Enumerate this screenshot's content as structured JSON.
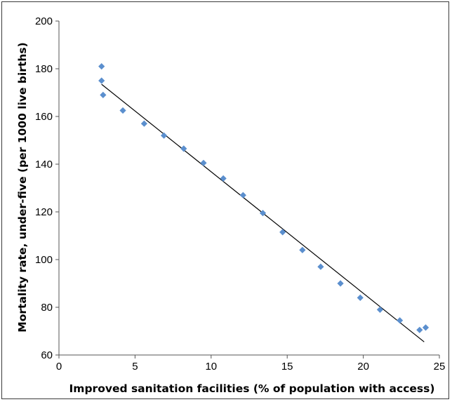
{
  "chart_data": {
    "type": "scatter",
    "title": "",
    "xlabel": "Improved sanitation facilities (% of population with access)",
    "ylabel": "Mortality rate, under-five (per 1000 live births)",
    "xlim": [
      0,
      25
    ],
    "ylim": [
      60,
      200
    ],
    "x_ticks": [
      "0",
      "5",
      "10",
      "15",
      "20",
      "25"
    ],
    "y_ticks": [
      "60",
      "80",
      "100",
      "120",
      "140",
      "160",
      "180",
      "200"
    ],
    "grid": false,
    "legend": "none",
    "series": [
      {
        "marker": "diamond",
        "color": "#5b8fce",
        "points": [
          {
            "x": 2.8,
            "y": 181
          },
          {
            "x": 2.8,
            "y": 175
          },
          {
            "x": 2.9,
            "y": 169
          },
          {
            "x": 4.2,
            "y": 162.5
          },
          {
            "x": 5.6,
            "y": 157
          },
          {
            "x": 6.9,
            "y": 152
          },
          {
            "x": 8.2,
            "y": 146.5
          },
          {
            "x": 9.5,
            "y": 140.5
          },
          {
            "x": 10.8,
            "y": 134
          },
          {
            "x": 12.1,
            "y": 127
          },
          {
            "x": 13.4,
            "y": 119.5
          },
          {
            "x": 14.7,
            "y": 111.5
          },
          {
            "x": 16.0,
            "y": 104
          },
          {
            "x": 17.2,
            "y": 97
          },
          {
            "x": 18.5,
            "y": 90
          },
          {
            "x": 19.8,
            "y": 84
          },
          {
            "x": 21.1,
            "y": 79
          },
          {
            "x": 22.4,
            "y": 74.5
          },
          {
            "x": 23.7,
            "y": 70.5
          },
          {
            "x": 24.1,
            "y": 71.5
          }
        ]
      }
    ],
    "trendline": {
      "type": "linear",
      "color": "#000000",
      "from": {
        "x": 2.8,
        "y": 173.5
      },
      "to": {
        "x": 24.0,
        "y": 65.5
      }
    }
  }
}
